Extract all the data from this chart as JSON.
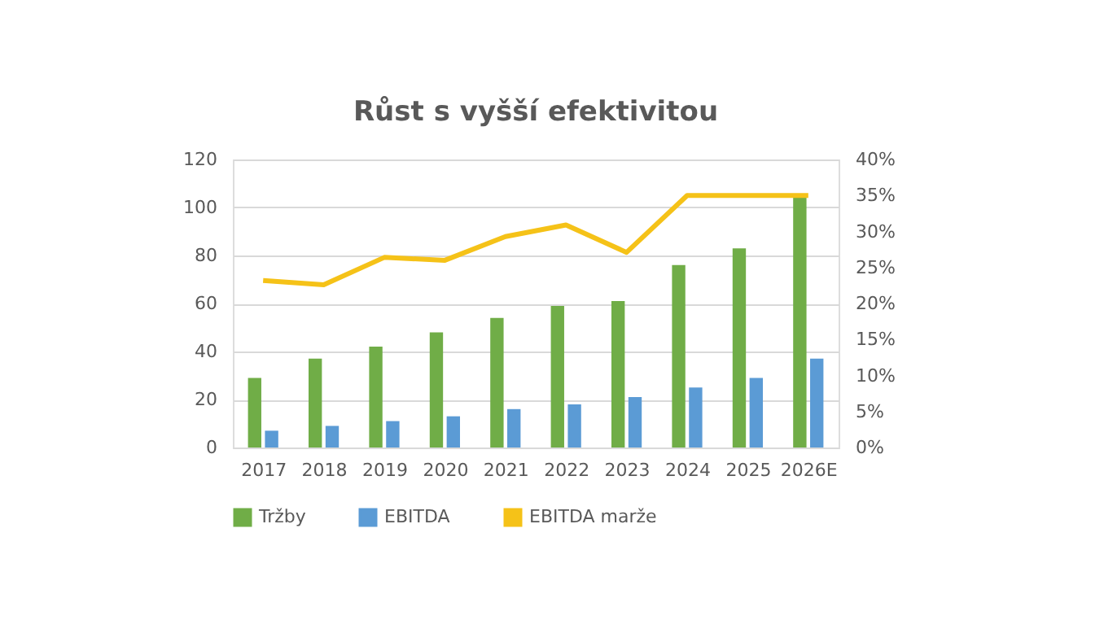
{
  "chart_data": {
    "type": "bar",
    "title": "Růst s vyšší efektivitou",
    "categories": [
      "2017",
      "2018",
      "2019",
      "2020",
      "2021",
      "2022",
      "2023",
      "2024",
      "2025",
      "2026E"
    ],
    "series": [
      {
        "name": "Tržby",
        "color": "#70ad47",
        "values": [
          29,
          37,
          42,
          48,
          54,
          59,
          61,
          76,
          83,
          105
        ]
      },
      {
        "name": "EBITDA",
        "color": "#5b9bd5",
        "values": [
          7,
          9,
          11,
          13,
          16,
          18,
          21,
          25,
          29,
          37
        ]
      },
      {
        "name": "EBITDA marže",
        "color": "#f5c218",
        "type": "line",
        "axis": "y2",
        "values": [
          23.2,
          22.6,
          26.4,
          26.0,
          29.3,
          30.9,
          27.1,
          35,
          35,
          35
        ]
      }
    ],
    "ylim": [
      0,
      120
    ],
    "yticks": [
      0,
      20,
      40,
      60,
      80,
      100,
      120
    ],
    "y2lim": [
      0,
      40
    ],
    "y2ticks": [
      {
        "value": 0,
        "label": "0%"
      },
      {
        "value": 5,
        "label": "5%"
      },
      {
        "value": 10,
        "label": "10%"
      },
      {
        "value": 15,
        "label": "15%"
      },
      {
        "value": 20,
        "label": "20%"
      },
      {
        "value": 25,
        "label": "25%"
      },
      {
        "value": 30,
        "label": "30%"
      },
      {
        "value": 35,
        "label": "35%"
      },
      {
        "value": 40,
        "label": "40%"
      }
    ],
    "grid": "y",
    "legend": "bottom",
    "marker": "none",
    "line_style": "solid"
  }
}
